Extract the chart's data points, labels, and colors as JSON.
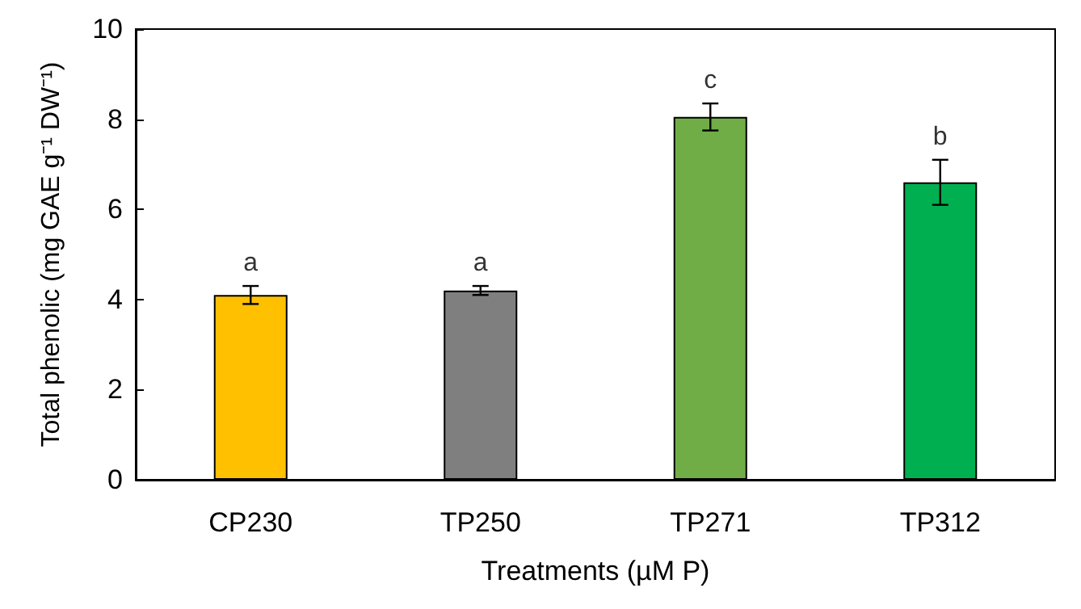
{
  "chart_data": {
    "type": "bar",
    "xlabel": "Treatments (µM P)",
    "ylabel": "Total phenolic (mg GAE g⁻¹ DW⁻¹)",
    "categories": [
      "CP230",
      "TP250",
      "TP271",
      "TP312"
    ],
    "values": [
      4.1,
      4.2,
      8.05,
      6.6
    ],
    "colors": [
      "#ffc000",
      "#7f7f7f",
      "#70ad47",
      "#00b050"
    ],
    "errors": [
      0.2,
      0.1,
      0.3,
      0.5
    ],
    "ylim": [
      0,
      10
    ],
    "yticks": [
      0,
      2,
      4,
      6,
      8,
      10
    ],
    "grid": false,
    "annotations": [
      {
        "text": "a",
        "x": "CP230",
        "y": 4.3
      },
      {
        "text": "a",
        "x": "TP250",
        "y": 4.3
      },
      {
        "text": "c",
        "x": "TP271",
        "y": 8.35
      },
      {
        "text": "b",
        "x": "TP312",
        "y": 7.1
      }
    ]
  }
}
